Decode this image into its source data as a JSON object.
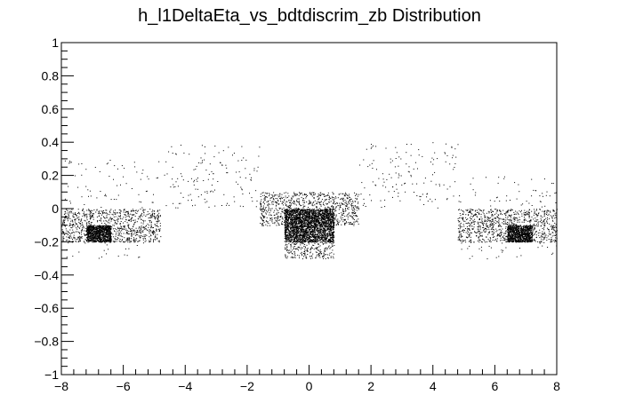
{
  "chart_data": {
    "type": "scatter",
    "title": "h_l1DeltaEta_vs_bdtdiscrim_zb Distribution",
    "xlabel": "",
    "ylabel": "",
    "xlim": [
      -8,
      8
    ],
    "ylim": [
      -1,
      1
    ],
    "x_ticks": [
      -8,
      -6,
      -4,
      -2,
      0,
      2,
      4,
      6,
      8
    ],
    "x_tick_labels": [
      "−8",
      "−6",
      "−4",
      "−2",
      "0",
      "2",
      "4",
      "6",
      "8"
    ],
    "y_ticks": [
      -1,
      -0.8,
      -0.6,
      -0.4,
      -0.2,
      0,
      0.2,
      0.4,
      0.6,
      0.8,
      1
    ],
    "y_tick_labels": [
      "−1",
      "−0.8",
      "−0.6",
      "−0.4",
      "−0.2",
      "0",
      "0.2",
      "0.4",
      "0.6",
      "0.8",
      "1"
    ],
    "grid": false,
    "legend": false,
    "marker_color": "#000000",
    "density_regions": [
      {
        "x": [
          -8,
          -4.8
        ],
        "y": [
          -0.2,
          0
        ],
        "density": "medium"
      },
      {
        "x": [
          -7.2,
          -6.4
        ],
        "y": [
          -0.2,
          -0.1
        ],
        "density": "high"
      },
      {
        "x": [
          -1.6,
          1.6
        ],
        "y": [
          -0.1,
          0.1
        ],
        "density": "medium"
      },
      {
        "x": [
          -0.8,
          0.8
        ],
        "y": [
          -0.2,
          0
        ],
        "density": "very-high"
      },
      {
        "x": [
          4.8,
          8
        ],
        "y": [
          -0.2,
          0
        ],
        "density": "medium"
      },
      {
        "x": [
          6.4,
          7.2
        ],
        "y": [
          -0.2,
          -0.1
        ],
        "density": "high"
      },
      {
        "x": [
          -8,
          -4.8
        ],
        "y": [
          -0.3,
          0.3
        ],
        "density": "sparse"
      },
      {
        "x": [
          -4.8,
          -1.6
        ],
        "y": [
          0,
          0.4
        ],
        "density": "sparse"
      },
      {
        "x": [
          -0.8,
          0.8
        ],
        "y": [
          -0.3,
          -0.2
        ],
        "density": "low"
      },
      {
        "x": [
          1.6,
          4.8
        ],
        "y": [
          0,
          0.4
        ],
        "density": "sparse"
      },
      {
        "x": [
          4.8,
          8
        ],
        "y": [
          -0.3,
          0.2
        ],
        "density": "sparse"
      }
    ]
  }
}
